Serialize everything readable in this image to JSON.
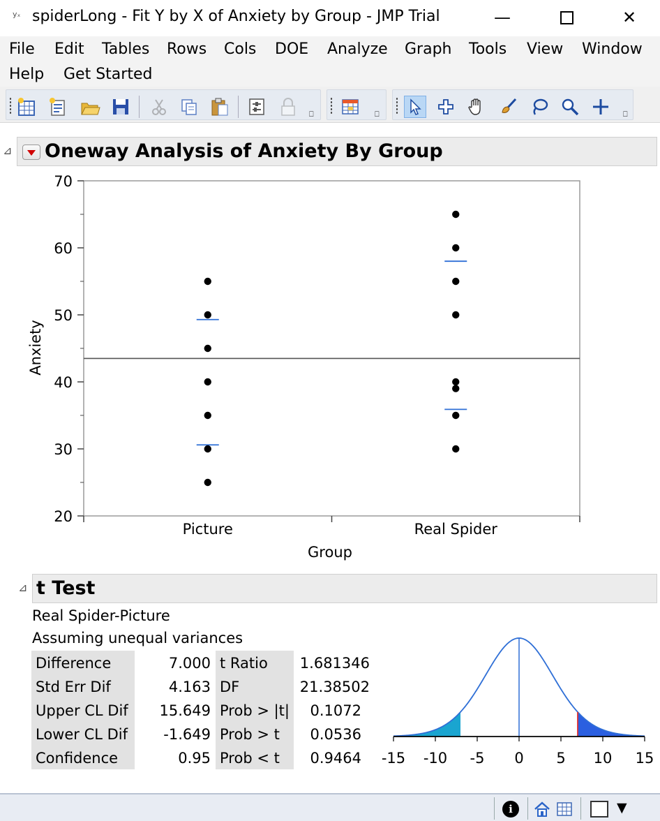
{
  "window": {
    "title": "spiderLong - Fit Y by X of Anxiety by Group - JMP Trial",
    "app_icon": "yₓ",
    "min_glyph": "—",
    "close_glyph": "✕"
  },
  "menu": [
    "File",
    "Edit",
    "Tables",
    "Rows",
    "Cols",
    "DOE",
    "Analyze",
    "Graph",
    "Tools",
    "View",
    "Window",
    "Help",
    "Get Started"
  ],
  "toolbar": {
    "icons": [
      "new-data-table-icon",
      "new-script-icon",
      "open-icon",
      "save-icon",
      "cut-icon",
      "copy-icon",
      "paste-icon",
      "set-params-icon",
      "lock-icon",
      "data-grid-icon",
      "arrow-icon",
      "crosshair-icon",
      "hand-icon",
      "brush-icon",
      "lasso-icon",
      "magnifier-icon",
      "plus-icon"
    ],
    "overflow_glyph": "⎕"
  },
  "report": {
    "title": "Oneway Analysis of Anxiety By Group",
    "disclosure_glyph": "⊿"
  },
  "chart_data": {
    "type": "scatter",
    "title": "",
    "xlabel": "Group",
    "ylabel": "Anxiety",
    "ylim": [
      20,
      70
    ],
    "yticks": [
      20,
      30,
      40,
      50,
      60,
      70
    ],
    "categories": [
      "Picture",
      "Real Spider"
    ],
    "points": [
      {
        "group": "Picture",
        "y": [
          55,
          50,
          45,
          40,
          35,
          30,
          25
        ]
      },
      {
        "group": "Real Spider",
        "y": [
          65,
          60,
          55,
          50,
          40,
          39,
          35,
          30
        ]
      }
    ],
    "grand_mean": 43.5,
    "mean_ci_lines": [
      {
        "group": "Picture",
        "upper": 49.3,
        "lower": 30.6
      },
      {
        "group": "Real Spider",
        "upper": 58.0,
        "lower": 35.9
      }
    ],
    "colors": {
      "points": "#000000",
      "mean_lines": "#2f6fd6",
      "grand_mean": "#555555"
    }
  },
  "ttest": {
    "title": "t Test",
    "comparison": "Real Spider-Picture",
    "assumption": "Assuming unequal variances",
    "left_rows": [
      {
        "label": "Difference",
        "value": "7.000"
      },
      {
        "label": "Std Err Dif",
        "value": "4.163"
      },
      {
        "label": "Upper CL Dif",
        "value": "15.649"
      },
      {
        "label": "Lower CL Dif",
        "value": "-1.649"
      },
      {
        "label": "Confidence",
        "value": "0.95"
      }
    ],
    "right_rows": [
      {
        "label": "t Ratio",
        "value": "1.681346"
      },
      {
        "label": "DF",
        "value": "21.38502"
      },
      {
        "label": "Prob > |t|",
        "value": "0.1072"
      },
      {
        "label": "Prob > t",
        "value": "0.0536"
      },
      {
        "label": "Prob < t",
        "value": "0.9464"
      }
    ],
    "distribution": {
      "xticks": [
        "-15",
        "-10",
        "-5",
        "0",
        "5",
        "10",
        "15"
      ],
      "observed_difference": 7.0,
      "critical_lower": -7.0,
      "colors": {
        "curve": "#2f6fd6",
        "left_tail": "#1aa5d0",
        "right_tail": "#2b5fe0",
        "observed_line": "#e03030"
      }
    }
  },
  "statusbar": {
    "icons": [
      "info-icon",
      "home-icon",
      "data-table-icon",
      "window-select-icon"
    ],
    "info_glyph": "i",
    "dropdown_glyph": "▼"
  }
}
